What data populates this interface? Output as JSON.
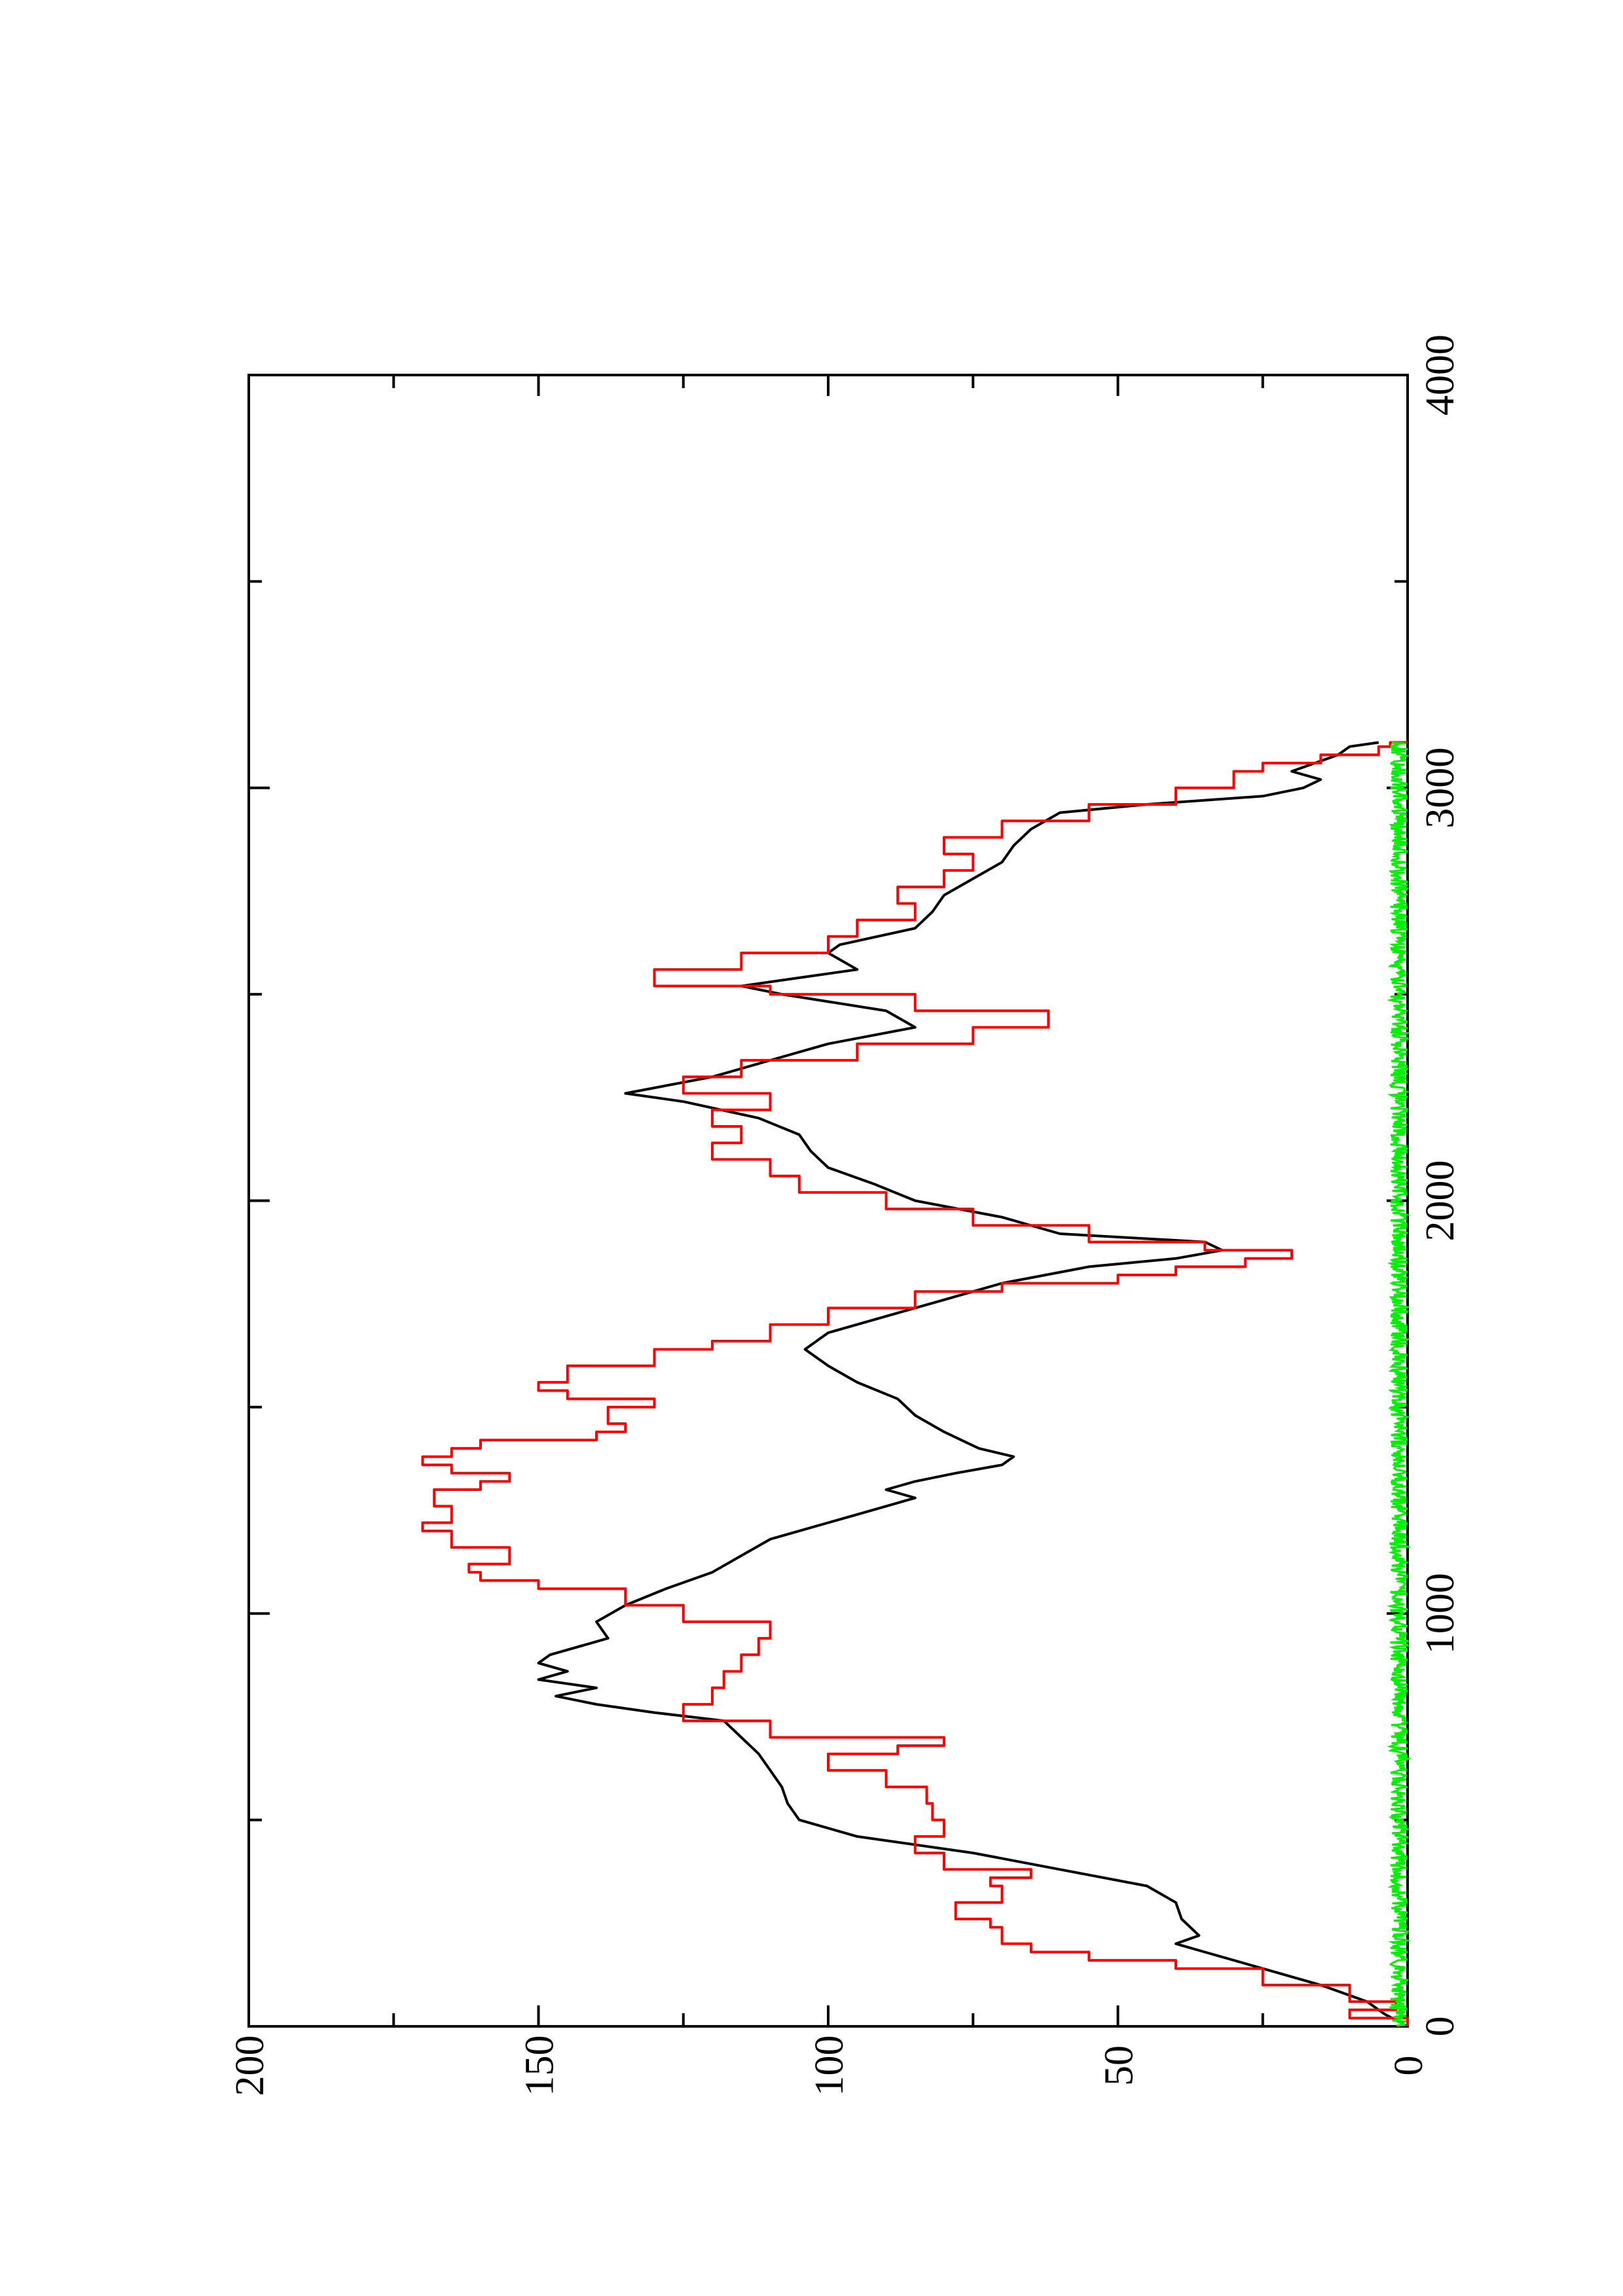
{
  "chart_data": {
    "type": "line",
    "title": "",
    "xlabel": "",
    "ylabel": "",
    "xlim": [
      0,
      4000
    ],
    "ylim": [
      0,
      200
    ],
    "x_ticks": [
      0,
      1000,
      2000,
      3000,
      4000
    ],
    "y_ticks": [
      0,
      50,
      100,
      150,
      200
    ],
    "x_tick_labels": [
      "0",
      "1000",
      "2000",
      "3000",
      "4000"
    ],
    "y_tick_labels": [
      "0",
      "50",
      "100",
      "150",
      "200"
    ],
    "grid": false,
    "orientation": "rotated 90° counter-clockwise (landscape plot on portrait page)",
    "series": [
      {
        "color": "#000000",
        "style": "line",
        "points": [
          [
            0,
            0
          ],
          [
            30,
            4
          ],
          [
            60,
            7
          ],
          [
            100,
            15
          ],
          [
            140,
            25
          ],
          [
            180,
            35
          ],
          [
            200,
            40
          ],
          [
            220,
            36
          ],
          [
            260,
            39
          ],
          [
            300,
            40
          ],
          [
            340,
            45
          ],
          [
            380,
            60
          ],
          [
            420,
            75
          ],
          [
            460,
            95
          ],
          [
            500,
            105
          ],
          [
            540,
            107
          ],
          [
            580,
            108
          ],
          [
            620,
            110
          ],
          [
            660,
            112
          ],
          [
            700,
            115
          ],
          [
            740,
            118
          ],
          [
            760,
            130
          ],
          [
            780,
            140
          ],
          [
            800,
            147
          ],
          [
            820,
            140
          ],
          [
            840,
            150
          ],
          [
            860,
            145
          ],
          [
            880,
            150
          ],
          [
            900,
            148
          ],
          [
            940,
            138
          ],
          [
            980,
            140
          ],
          [
            1020,
            135
          ],
          [
            1060,
            128
          ],
          [
            1100,
            120
          ],
          [
            1140,
            115
          ],
          [
            1180,
            110
          ],
          [
            1200,
            105
          ],
          [
            1220,
            100
          ],
          [
            1240,
            95
          ],
          [
            1260,
            90
          ],
          [
            1280,
            85
          ],
          [
            1300,
            90
          ],
          [
            1320,
            85
          ],
          [
            1340,
            78
          ],
          [
            1360,
            70
          ],
          [
            1380,
            68
          ],
          [
            1400,
            74
          ],
          [
            1440,
            80
          ],
          [
            1480,
            85
          ],
          [
            1520,
            88
          ],
          [
            1560,
            95
          ],
          [
            1600,
            100
          ],
          [
            1640,
            104
          ],
          [
            1680,
            100
          ],
          [
            1720,
            90
          ],
          [
            1760,
            80
          ],
          [
            1800,
            70
          ],
          [
            1840,
            55
          ],
          [
            1860,
            40
          ],
          [
            1880,
            32
          ],
          [
            1900,
            35
          ],
          [
            1920,
            60
          ],
          [
            1960,
            70
          ],
          [
            2000,
            85
          ],
          [
            2040,
            92
          ],
          [
            2080,
            100
          ],
          [
            2120,
            103
          ],
          [
            2160,
            105
          ],
          [
            2200,
            112
          ],
          [
            2240,
            125
          ],
          [
            2260,
            135
          ],
          [
            2300,
            120
          ],
          [
            2340,
            110
          ],
          [
            2380,
            100
          ],
          [
            2420,
            85
          ],
          [
            2460,
            90
          ],
          [
            2500,
            108
          ],
          [
            2520,
            115
          ],
          [
            2540,
            105
          ],
          [
            2560,
            95
          ],
          [
            2600,
            100
          ],
          [
            2620,
            98
          ],
          [
            2660,
            85
          ],
          [
            2700,
            82
          ],
          [
            2740,
            80
          ],
          [
            2780,
            75
          ],
          [
            2820,
            70
          ],
          [
            2860,
            68
          ],
          [
            2900,
            65
          ],
          [
            2940,
            60
          ],
          [
            2960,
            45
          ],
          [
            2980,
            25
          ],
          [
            3000,
            18
          ],
          [
            3020,
            15
          ],
          [
            3040,
            20
          ],
          [
            3080,
            12
          ],
          [
            3100,
            10
          ],
          [
            3110,
            5
          ]
        ]
      },
      {
        "color": "#ff0000",
        "style": "step",
        "points": [
          [
            0,
            0
          ],
          [
            20,
            10
          ],
          [
            40,
            2
          ],
          [
            60,
            10
          ],
          [
            100,
            25
          ],
          [
            140,
            40
          ],
          [
            160,
            55
          ],
          [
            180,
            65
          ],
          [
            200,
            70
          ],
          [
            240,
            72
          ],
          [
            260,
            78
          ],
          [
            300,
            70
          ],
          [
            340,
            72
          ],
          [
            360,
            65
          ],
          [
            380,
            80
          ],
          [
            420,
            85
          ],
          [
            460,
            80
          ],
          [
            500,
            82
          ],
          [
            540,
            83
          ],
          [
            580,
            90
          ],
          [
            620,
            100
          ],
          [
            660,
            88
          ],
          [
            680,
            80
          ],
          [
            700,
            110
          ],
          [
            740,
            125
          ],
          [
            780,
            120
          ],
          [
            820,
            118
          ],
          [
            860,
            115
          ],
          [
            900,
            112
          ],
          [
            940,
            110
          ],
          [
            980,
            125
          ],
          [
            1020,
            135
          ],
          [
            1060,
            150
          ],
          [
            1080,
            160
          ],
          [
            1100,
            162
          ],
          [
            1120,
            155
          ],
          [
            1160,
            165
          ],
          [
            1200,
            170
          ],
          [
            1220,
            165
          ],
          [
            1260,
            168
          ],
          [
            1300,
            160
          ],
          [
            1320,
            155
          ],
          [
            1340,
            165
          ],
          [
            1360,
            170
          ],
          [
            1380,
            165
          ],
          [
            1400,
            160
          ],
          [
            1420,
            140
          ],
          [
            1440,
            135
          ],
          [
            1460,
            138
          ],
          [
            1500,
            130
          ],
          [
            1520,
            145
          ],
          [
            1540,
            150
          ],
          [
            1560,
            145
          ],
          [
            1600,
            130
          ],
          [
            1640,
            120
          ],
          [
            1660,
            110
          ],
          [
            1700,
            100
          ],
          [
            1740,
            85
          ],
          [
            1780,
            70
          ],
          [
            1800,
            50
          ],
          [
            1820,
            40
          ],
          [
            1840,
            28
          ],
          [
            1860,
            20
          ],
          [
            1880,
            35
          ],
          [
            1900,
            55
          ],
          [
            1940,
            75
          ],
          [
            1980,
            90
          ],
          [
            2020,
            105
          ],
          [
            2060,
            110
          ],
          [
            2100,
            120
          ],
          [
            2140,
            115
          ],
          [
            2180,
            120
          ],
          [
            2220,
            110
          ],
          [
            2260,
            125
          ],
          [
            2300,
            115
          ],
          [
            2340,
            95
          ],
          [
            2380,
            75
          ],
          [
            2420,
            62
          ],
          [
            2460,
            85
          ],
          [
            2500,
            110
          ],
          [
            2520,
            130
          ],
          [
            2560,
            115
          ],
          [
            2600,
            100
          ],
          [
            2640,
            95
          ],
          [
            2680,
            85
          ],
          [
            2720,
            88
          ],
          [
            2760,
            80
          ],
          [
            2800,
            75
          ],
          [
            2840,
            80
          ],
          [
            2880,
            70
          ],
          [
            2920,
            55
          ],
          [
            2960,
            40
          ],
          [
            3000,
            30
          ],
          [
            3040,
            25
          ],
          [
            3060,
            15
          ],
          [
            3080,
            5
          ],
          [
            3100,
            3
          ],
          [
            3110,
            0
          ]
        ]
      },
      {
        "color": "#00ee00",
        "style": "noise",
        "x_range": [
          0,
          3110
        ],
        "level": 0,
        "amplitude": 3
      }
    ]
  }
}
